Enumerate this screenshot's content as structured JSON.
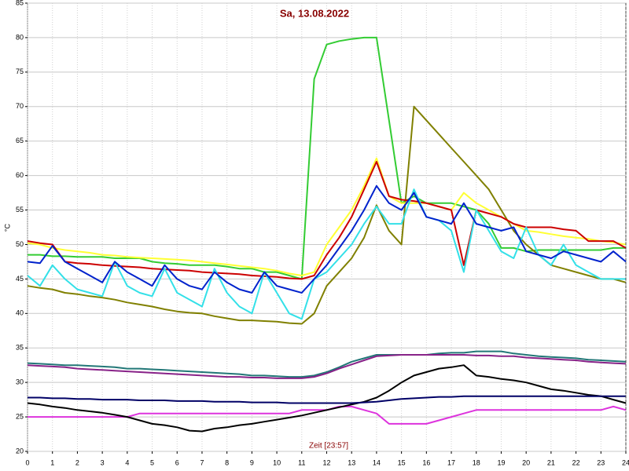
{
  "chart_data": {
    "type": "line",
    "title": "Sa, 13.08.2022",
    "xlabel": "Zeit [23:57]",
    "ylabel": "°C",
    "xlim": [
      0,
      24
    ],
    "ylim": [
      20,
      85
    ],
    "xticks": [
      0,
      1,
      2,
      3,
      4,
      5,
      6,
      7,
      8,
      9,
      10,
      11,
      12,
      13,
      14,
      15,
      16,
      17,
      18,
      19,
      20,
      21,
      22,
      23,
      24
    ],
    "yticks": [
      20,
      25,
      30,
      35,
      40,
      45,
      50,
      55,
      60,
      65,
      70,
      75,
      80,
      85
    ],
    "grid": true,
    "x": [
      0,
      0.5,
      1,
      1.5,
      2,
      2.5,
      3,
      3.5,
      4,
      4.5,
      5,
      5.5,
      6,
      6.5,
      7,
      7.5,
      8,
      8.5,
      9,
      9.5,
      10,
      10.5,
      11,
      11.5,
      12,
      12.5,
      13,
      13.5,
      14,
      14.5,
      15,
      15.5,
      16,
      16.5,
      17,
      17.5,
      18,
      18.5,
      19,
      19.5,
      20,
      20.5,
      21,
      21.5,
      22,
      22.5,
      23,
      23.5,
      24
    ],
    "series": [
      {
        "color": "#33cc33",
        "values": [
          48.5,
          48.5,
          48.3,
          48.3,
          48.2,
          48.2,
          48.2,
          48,
          48,
          48,
          47.5,
          47.3,
          47.2,
          47,
          47,
          47,
          46.8,
          46.5,
          46.5,
          46,
          46,
          45.5,
          45,
          74,
          79,
          79.5,
          79.8,
          80,
          80,
          68,
          56,
          57,
          56,
          56,
          56,
          55.5,
          55,
          53,
          49.5,
          49.5,
          49,
          49.2,
          49.2,
          49.2,
          49.2,
          49.2,
          49.2,
          49.5,
          49.5
        ]
      },
      {
        "color": "#808000",
        "values": [
          44,
          43.7,
          43.5,
          43,
          42.8,
          42.5,
          42.3,
          42,
          41.6,
          41.3,
          41,
          40.6,
          40.3,
          40.1,
          40,
          39.6,
          39.3,
          39,
          39,
          38.9,
          38.8,
          38.6,
          38.5,
          40,
          44,
          46,
          48,
          51,
          55.7,
          52,
          50,
          70,
          68,
          66,
          64,
          62,
          60,
          58,
          55,
          52,
          50,
          48.5,
          47,
          46.5,
          46,
          45.5,
          45,
          45,
          44.5
        ]
      },
      {
        "color": "#ffff33",
        "values": [
          50.2,
          50,
          49.5,
          49.2,
          49,
          48.8,
          48.5,
          48.4,
          48.2,
          48.1,
          48,
          47.9,
          47.8,
          47.7,
          47.5,
          47.3,
          47.1,
          46.9,
          46.7,
          46.5,
          46.2,
          45.8,
          45.5,
          46,
          50,
          52.5,
          55,
          58.5,
          62.5,
          57,
          56,
          56,
          56,
          55.5,
          55,
          57.5,
          56,
          55,
          54,
          53,
          52,
          51.8,
          51.5,
          51.2,
          51,
          50.8,
          50.5,
          50.3,
          50
        ]
      },
      {
        "color": "#cc0000",
        "values": [
          50.5,
          50.2,
          50,
          47.5,
          47.3,
          47.2,
          47,
          46.9,
          46.8,
          46.7,
          46.5,
          46.4,
          46.3,
          46.2,
          46,
          45.9,
          45.8,
          45.7,
          45.5,
          45.4,
          45.3,
          45.1,
          45,
          45.5,
          48.5,
          51,
          54,
          58,
          62,
          57,
          56.5,
          56.3,
          56,
          55.5,
          55,
          47,
          55,
          54.5,
          54,
          53,
          52.5,
          52.5,
          52.5,
          52.2,
          52,
          50.5,
          50.5,
          50.5,
          49.5
        ]
      },
      {
        "color": "#33e0e8",
        "values": [
          45.5,
          44,
          47,
          45,
          43.5,
          43,
          42.5,
          47.5,
          44,
          43,
          42.5,
          46.5,
          43,
          42,
          41,
          46.5,
          43,
          41,
          40,
          46,
          43,
          40,
          39.2,
          45,
          46,
          48,
          50,
          53,
          55.5,
          53,
          53,
          58,
          54,
          53.5,
          52,
          46,
          55,
          52,
          49,
          48,
          52.5,
          48.5,
          47,
          50,
          47,
          46,
          45,
          45,
          45
        ]
      },
      {
        "color": "#0022cc",
        "values": [
          47.5,
          47.3,
          49.8,
          47.5,
          46.5,
          45.5,
          44.5,
          47.5,
          46,
          45,
          44,
          47,
          45,
          44,
          43.5,
          46,
          44.5,
          43.5,
          43,
          46,
          44,
          43.5,
          43,
          45,
          47,
          49.5,
          52,
          55,
          58.5,
          56,
          55,
          57.5,
          54,
          53.5,
          53,
          56,
          53,
          52.5,
          52,
          52.5,
          49,
          48.5,
          48,
          49,
          48.5,
          48,
          47.5,
          49,
          47.5
        ]
      },
      {
        "color": "#227777",
        "values": [
          32.8,
          32.7,
          32.6,
          32.5,
          32.5,
          32.4,
          32.3,
          32.2,
          32,
          32,
          31.9,
          31.8,
          31.7,
          31.6,
          31.5,
          31.4,
          31.3,
          31.2,
          31,
          31,
          30.9,
          30.8,
          30.8,
          31,
          31.5,
          32.2,
          33,
          33.5,
          34,
          34,
          34,
          34,
          34,
          34.2,
          34.3,
          34.3,
          34.5,
          34.5,
          34.5,
          34.2,
          34,
          33.8,
          33.7,
          33.6,
          33.5,
          33.3,
          33.2,
          33.1,
          33
        ]
      },
      {
        "color": "#882288",
        "values": [
          32.5,
          32.4,
          32.3,
          32.2,
          32,
          31.9,
          31.8,
          31.7,
          31.6,
          31.5,
          31.4,
          31.3,
          31.2,
          31.1,
          31,
          30.9,
          30.8,
          30.8,
          30.7,
          30.7,
          30.6,
          30.6,
          30.6,
          30.8,
          31.3,
          32,
          32.6,
          33.2,
          33.8,
          33.9,
          34,
          34,
          34,
          34,
          34,
          34,
          33.9,
          33.9,
          33.8,
          33.8,
          33.6,
          33.5,
          33.4,
          33.3,
          33.2,
          33,
          32.9,
          32.8,
          32.7
        ]
      },
      {
        "color": "#dd33dd",
        "values": [
          25,
          25,
          25,
          25,
          25,
          25,
          25,
          25,
          25,
          25.5,
          25.5,
          25.5,
          25.5,
          25.5,
          25.5,
          25.5,
          25.5,
          25.5,
          25.5,
          25.5,
          25.5,
          25.5,
          26,
          26,
          26,
          26.5,
          26.5,
          26,
          25.5,
          24,
          24,
          24,
          24,
          24.5,
          25,
          25.5,
          26,
          26,
          26,
          26,
          26,
          26,
          26,
          26,
          26,
          26,
          26,
          26.5,
          26
        ]
      },
      {
        "color": "#000000",
        "values": [
          27,
          26.8,
          26.5,
          26.3,
          26,
          25.8,
          25.6,
          25.3,
          25,
          24.5,
          24,
          23.8,
          23.5,
          23,
          22.9,
          23.3,
          23.5,
          23.8,
          24,
          24.3,
          24.6,
          24.9,
          25.2,
          25.6,
          26,
          26.4,
          26.8,
          27.2,
          27.8,
          28.8,
          30,
          31,
          31.5,
          32,
          32.2,
          32.5,
          31,
          30.8,
          30.5,
          30.3,
          30,
          29.5,
          29,
          28.8,
          28.5,
          28.2,
          28,
          27.5,
          27
        ]
      },
      {
        "color": "#000066",
        "values": [
          27.8,
          27.8,
          27.7,
          27.7,
          27.6,
          27.6,
          27.5,
          27.5,
          27.5,
          27.4,
          27.4,
          27.4,
          27.3,
          27.3,
          27.3,
          27.2,
          27.2,
          27.2,
          27.1,
          27.1,
          27.1,
          27,
          27,
          27,
          27,
          27,
          27,
          27.1,
          27.2,
          27.4,
          27.6,
          27.7,
          27.8,
          27.9,
          27.9,
          28,
          28,
          28,
          28,
          28,
          28,
          28,
          28,
          28,
          28,
          28,
          28,
          28,
          28
        ]
      }
    ]
  }
}
